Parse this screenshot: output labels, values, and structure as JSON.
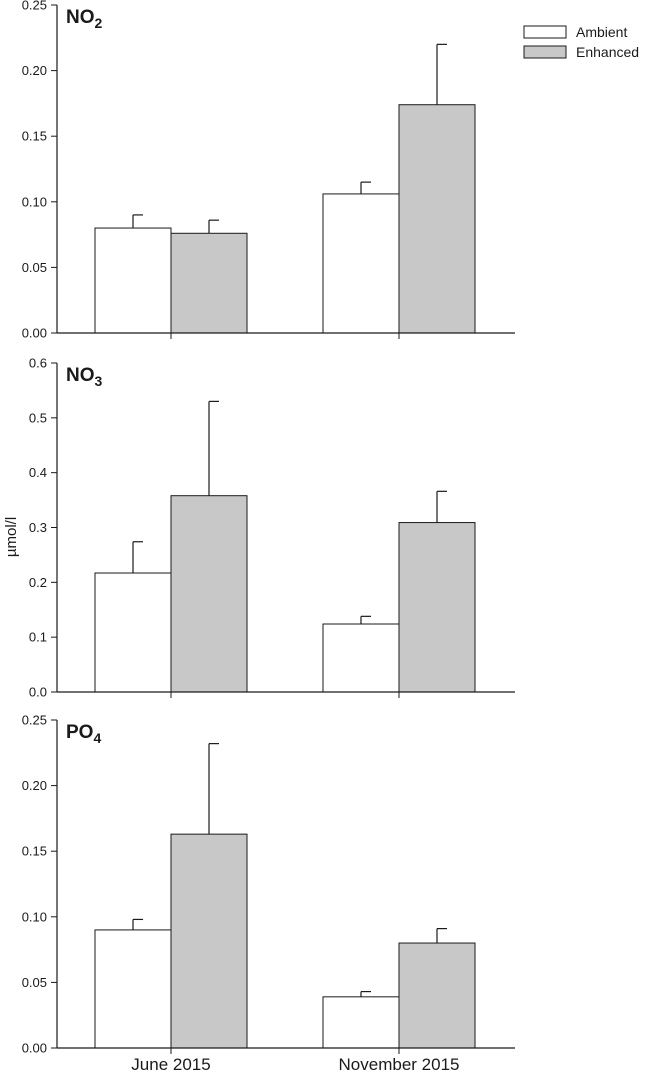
{
  "chart_data": [
    {
      "type": "bar",
      "title_main": "NO",
      "title_sub": "2",
      "categories": [
        "June 2015",
        "November 2015"
      ],
      "series": [
        {
          "name": "Ambient",
          "values": [
            0.08,
            0.106
          ],
          "errors": [
            0.01,
            0.009
          ]
        },
        {
          "name": "Enhanced",
          "values": [
            0.076,
            0.174
          ],
          "errors": [
            0.01,
            0.046
          ]
        }
      ],
      "ylim": [
        0,
        0.25
      ],
      "yticks": [
        "0.00",
        "0.05",
        "0.10",
        "0.15",
        "0.20",
        "0.25"
      ],
      "show_xlabels": false
    },
    {
      "type": "bar",
      "title_main": "NO",
      "title_sub": "3",
      "categories": [
        "June 2015",
        "November 2015"
      ],
      "series": [
        {
          "name": "Ambient",
          "values": [
            0.217,
            0.124
          ],
          "errors": [
            0.057,
            0.014
          ]
        },
        {
          "name": "Enhanced",
          "values": [
            0.358,
            0.309
          ],
          "errors": [
            0.172,
            0.057
          ]
        }
      ],
      "ylim": [
        0,
        0.6
      ],
      "yticks": [
        "0.0",
        "0.1",
        "0.2",
        "0.3",
        "0.4",
        "0.5",
        "0.6"
      ],
      "show_xlabels": false
    },
    {
      "type": "bar",
      "title_main": "PO",
      "title_sub": "4",
      "categories": [
        "June 2015",
        "November 2015"
      ],
      "series": [
        {
          "name": "Ambient",
          "values": [
            0.09,
            0.039
          ],
          "errors": [
            0.008,
            0.004
          ]
        },
        {
          "name": "Enhanced",
          "values": [
            0.163,
            0.08
          ],
          "errors": [
            0.069,
            0.011
          ]
        }
      ],
      "ylim": [
        0,
        0.25
      ],
      "yticks": [
        "0.00",
        "0.05",
        "0.10",
        "0.15",
        "0.20",
        "0.25"
      ],
      "show_xlabels": true
    }
  ],
  "ylabel": "µmol/l",
  "legend": {
    "placement": "top-right",
    "items": [
      {
        "name": "Ambient",
        "color": "#ffffff"
      },
      {
        "name": "Enhanced",
        "color": "#c8c8c8"
      }
    ]
  },
  "colors": {
    "ambient": "#ffffff",
    "enhanced": "#c8c8c8",
    "stroke": "#1a1a1a"
  }
}
